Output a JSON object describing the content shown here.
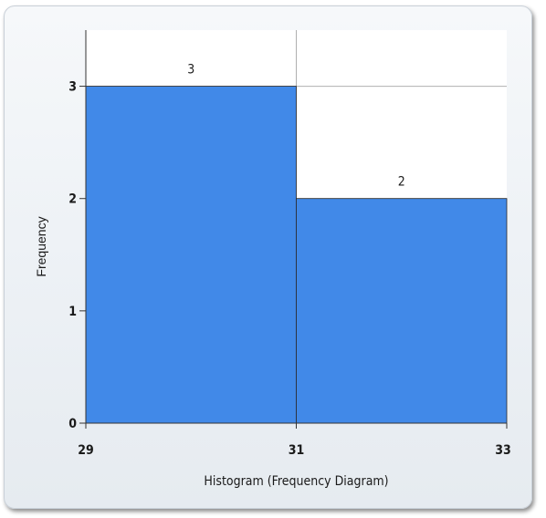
{
  "chart_data": {
    "type": "bar",
    "title": "",
    "xlabel": "Histogram (Frequency Diagram)",
    "ylabel": "Frequency",
    "bins": [
      {
        "from": 29,
        "to": 31,
        "value": 3,
        "label": "3"
      },
      {
        "from": 31,
        "to": 33,
        "value": 2,
        "label": "2"
      }
    ],
    "x_ticks": [
      "29",
      "31",
      "33"
    ],
    "x_tick_values": [
      29,
      31,
      33
    ],
    "y_ticks": [
      "0",
      "1",
      "2",
      "3"
    ],
    "y_tick_values": [
      0,
      1,
      2,
      3
    ],
    "xlim": [
      29,
      33
    ],
    "ylim": [
      0,
      3.5
    ],
    "grid": true,
    "legend": "none",
    "colors": {
      "bar": "#4189e8",
      "bar_edge": "#2a2a2a",
      "grid": "#b0b0b0",
      "plot_bg": "#ffffff"
    }
  }
}
